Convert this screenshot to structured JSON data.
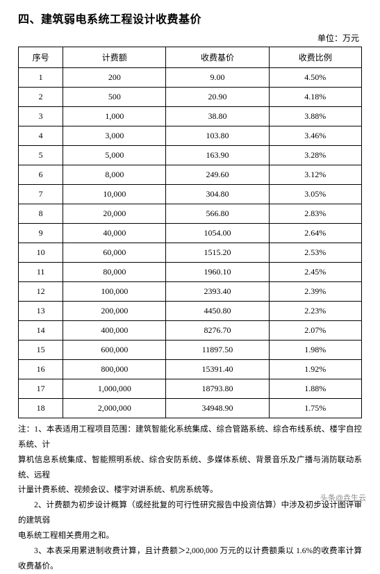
{
  "title": "四、建筑弱电系统工程设计收费基价",
  "unit_label": "单位：万元",
  "table": {
    "headers": [
      "序号",
      "计费额",
      "收费基价",
      "收费比例"
    ],
    "rows": [
      [
        "1",
        "200",
        "9.00",
        "4.50%"
      ],
      [
        "2",
        "500",
        "20.90",
        "4.18%"
      ],
      [
        "3",
        "1,000",
        "38.80",
        "3.88%"
      ],
      [
        "4",
        "3,000",
        "103.80",
        "3.46%"
      ],
      [
        "5",
        "5,000",
        "163.90",
        "3.28%"
      ],
      [
        "6",
        "8,000",
        "249.60",
        "3.12%"
      ],
      [
        "7",
        "10,000",
        "304.80",
        "3.05%"
      ],
      [
        "8",
        "20,000",
        "566.80",
        "2.83%"
      ],
      [
        "9",
        "40,000",
        "1054.00",
        "2.64%"
      ],
      [
        "10",
        "60,000",
        "1515.20",
        "2.53%"
      ],
      [
        "11",
        "80,000",
        "1960.10",
        "2.45%"
      ],
      [
        "12",
        "100,000",
        "2393.40",
        "2.39%"
      ],
      [
        "13",
        "200,000",
        "4450.80",
        "2.23%"
      ],
      [
        "14",
        "400,000",
        "8276.70",
        "2.07%"
      ],
      [
        "15",
        "600,000",
        "11897.50",
        "1.98%"
      ],
      [
        "16",
        "800,000",
        "15391.40",
        "1.92%"
      ],
      [
        "17",
        "1,000,000",
        "18793.80",
        "1.88%"
      ],
      [
        "18",
        "2,000,000",
        "34948.90",
        "1.75%"
      ]
    ]
  },
  "notes": {
    "n1a": "注：1、本表适用工程项目范围：建筑智能化系统集成、综合管路系统、综合布线系统、楼宇自控系统、计",
    "n1b": "算机信息系统集成、智能照明系统、综合安防系统、多媒体系统、背景音乐及广播与消防联动系统、远程",
    "n1c": "计量计费系统、视频会议、楼宇对讲系统、机房系统等。",
    "n2a": "2、计费额为初步设计概算（或经批复的可行性研究报告中投资估算）中涉及初步设计图评审的建筑弱",
    "n2b": "电系统工程相关费用之和。",
    "n3": "3、本表采用累进制收费计算，且计费额＞2,000,000 万元的以计费额乘以 1.6%的收费率计算收费基价。"
  },
  "watermark": "头条@垚生云"
}
